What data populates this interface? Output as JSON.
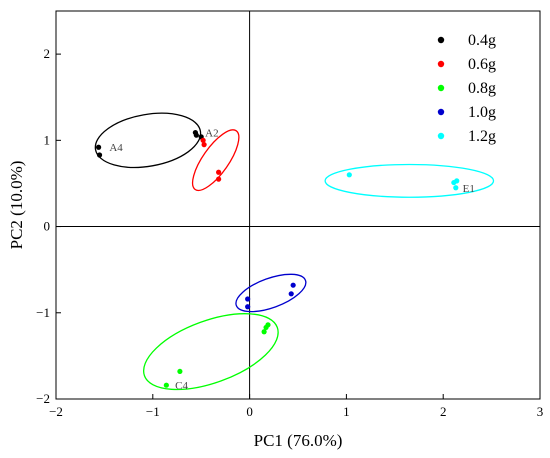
{
  "chart_data": {
    "type": "scatter",
    "xlabel": "PC1 (76.0%)",
    "ylabel": "PC2 (10.0%)",
    "xlim": [
      -2,
      3
    ],
    "ylim": [
      -2,
      2.5
    ],
    "xticks": [
      -2,
      -1,
      0,
      1,
      2,
      3
    ],
    "yticks": [
      -2,
      -1,
      0,
      1,
      2
    ],
    "xtick_labels": [
      "−2",
      "−1",
      "0",
      "1",
      "2",
      "3"
    ],
    "ytick_labels": [
      "−2",
      "−1",
      "0",
      "1",
      "2"
    ],
    "zero_lines": true,
    "grid": false,
    "legend_position": "top-right",
    "series": [
      {
        "name": "0.4g",
        "color": "#000000",
        "points": [
          [
            -1.56,
            0.92
          ],
          [
            -1.55,
            0.83
          ],
          [
            -0.56,
            1.09
          ],
          [
            -0.55,
            1.06
          ],
          [
            -0.5,
            1.04
          ]
        ],
        "ellipse": {
          "cx": -1.05,
          "cy": 1.0,
          "rx": 0.55,
          "ry": 0.3,
          "angle_deg": 10
        }
      },
      {
        "name": "0.6g",
        "color": "#ff0000",
        "points": [
          [
            -0.48,
            1.0
          ],
          [
            -0.47,
            0.95
          ],
          [
            -0.32,
            0.63
          ],
          [
            -0.32,
            0.55
          ]
        ],
        "ellipse": {
          "cx": -0.35,
          "cy": 0.77,
          "rx": 0.37,
          "ry": 0.15,
          "angle_deg": 55
        }
      },
      {
        "name": "0.8g",
        "color": "#00ff00",
        "points": [
          [
            -0.86,
            -1.84
          ],
          [
            -0.72,
            -1.68
          ],
          [
            0.15,
            -1.22
          ],
          [
            0.17,
            -1.17
          ],
          [
            0.19,
            -1.14
          ]
        ],
        "ellipse": {
          "cx": -0.4,
          "cy": -1.45,
          "rx": 0.73,
          "ry": 0.36,
          "angle_deg": 20
        }
      },
      {
        "name": "1.0g",
        "color": "#0000cd",
        "points": [
          [
            -0.02,
            -0.84
          ],
          [
            -0.02,
            -0.93
          ],
          [
            0.43,
            -0.78
          ],
          [
            0.45,
            -0.68
          ]
        ],
        "ellipse": {
          "cx": 0.22,
          "cy": -0.77,
          "rx": 0.38,
          "ry": 0.17,
          "angle_deg": 20
        }
      },
      {
        "name": "1.2g",
        "color": "#00ffff",
        "points": [
          [
            1.03,
            0.6
          ],
          [
            2.11,
            0.51
          ],
          [
            2.13,
            0.45
          ],
          [
            2.14,
            0.53
          ]
        ],
        "ellipse": {
          "cx": 1.65,
          "cy": 0.53,
          "rx": 0.87,
          "ry": 0.19,
          "angle_deg": 0
        }
      }
    ],
    "annotations": [
      {
        "text": "A4",
        "x": -1.48,
        "y": 0.92
      },
      {
        "text": "A2",
        "x": -0.49,
        "y": 1.09
      },
      {
        "text": "C4",
        "x": -0.8,
        "y": -1.84
      },
      {
        "text": "E1",
        "x": 2.17,
        "y": 0.45
      }
    ]
  }
}
